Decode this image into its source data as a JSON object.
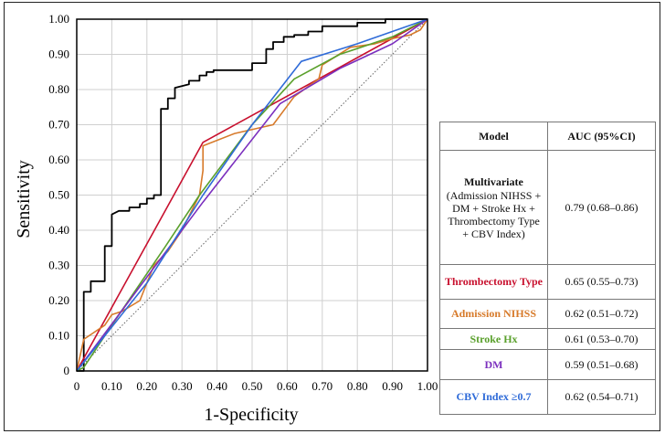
{
  "chart_data": {
    "type": "line",
    "xlabel": "1-Specificity",
    "ylabel": "Sensitivity",
    "xlim": [
      0,
      1
    ],
    "ylim": [
      0,
      1
    ],
    "grid": true,
    "xticks": [
      "0",
      "0.10",
      "0.20",
      "0.30",
      "0.40",
      "0.50",
      "0.60",
      "0.70",
      "0.80",
      "0.90",
      "1.00"
    ],
    "yticks": [
      "0",
      "0.10",
      "0.20",
      "0.30",
      "0.40",
      "0.50",
      "0.60",
      "0.70",
      "0.80",
      "0.90",
      "1.00"
    ],
    "reference_line": {
      "x": [
        0,
        1
      ],
      "y": [
        0,
        1
      ],
      "style": "dotted"
    },
    "series": [
      {
        "name": "Multivariate (Admission NIHSS + DM + Stroke Hx + Thrombectomy Type + CBV Index)",
        "color": "#000000",
        "x": [
          0,
          0.02,
          0.02,
          0.04,
          0.04,
          0.08,
          0.08,
          0.1,
          0.1,
          0.12,
          0.15,
          0.15,
          0.18,
          0.18,
          0.2,
          0.2,
          0.22,
          0.22,
          0.24,
          0.24,
          0.26,
          0.26,
          0.28,
          0.28,
          0.32,
          0.32,
          0.35,
          0.35,
          0.37,
          0.37,
          0.39,
          0.39,
          0.5,
          0.5,
          0.54,
          0.54,
          0.56,
          0.56,
          0.59,
          0.59,
          0.62,
          0.62,
          0.66,
          0.66,
          0.7,
          0.7,
          0.8,
          0.8,
          0.88,
          0.88,
          0.96,
          1.0
        ],
        "y": [
          0,
          0,
          0.225,
          0.225,
          0.255,
          0.255,
          0.355,
          0.355,
          0.445,
          0.455,
          0.455,
          0.465,
          0.465,
          0.475,
          0.475,
          0.49,
          0.49,
          0.5,
          0.5,
          0.745,
          0.745,
          0.775,
          0.775,
          0.805,
          0.815,
          0.825,
          0.825,
          0.84,
          0.84,
          0.85,
          0.85,
          0.855,
          0.855,
          0.875,
          0.875,
          0.915,
          0.915,
          0.935,
          0.935,
          0.95,
          0.95,
          0.955,
          0.955,
          0.965,
          0.965,
          0.98,
          0.98,
          0.99,
          0.99,
          1.0,
          1.0,
          1.0
        ]
      },
      {
        "name": "Thrombectomy Type",
        "color": "#c8102e",
        "x": [
          0,
          0.36,
          1.0
        ],
        "y": [
          0,
          0.65,
          1.0
        ]
      },
      {
        "name": "Admission NIHSS",
        "color": "#d77a2a",
        "x": [
          0,
          0.02,
          0.05,
          0.08,
          0.1,
          0.13,
          0.18,
          0.22,
          0.26,
          0.3,
          0.35,
          0.36,
          0.36,
          0.45,
          0.56,
          0.62,
          0.69,
          0.7,
          0.78,
          0.85,
          0.9,
          0.95,
          0.98,
          1.0
        ],
        "y": [
          0,
          0.09,
          0.11,
          0.13,
          0.16,
          0.17,
          0.2,
          0.3,
          0.34,
          0.4,
          0.5,
          0.57,
          0.64,
          0.675,
          0.7,
          0.78,
          0.83,
          0.87,
          0.92,
          0.93,
          0.945,
          0.955,
          0.97,
          1.0
        ]
      },
      {
        "name": "Stroke Hx",
        "color": "#5aa02c",
        "x": [
          0,
          0.02,
          0.1,
          0.25,
          0.35,
          0.5,
          0.62,
          0.75,
          0.9,
          1.0
        ],
        "y": [
          0,
          0.01,
          0.13,
          0.35,
          0.5,
          0.7,
          0.83,
          0.9,
          0.95,
          1.0
        ]
      },
      {
        "name": "DM",
        "color": "#7b2fbe",
        "x": [
          0,
          0.36,
          0.58,
          0.75,
          0.9,
          1.0
        ],
        "y": [
          0,
          0.48,
          0.76,
          0.86,
          0.93,
          1.0
        ]
      },
      {
        "name": "CBV Index ≥0.7",
        "color": "#2f6bd8",
        "x": [
          0,
          0.2,
          0.36,
          0.5,
          0.64,
          0.8,
          1.0
        ],
        "y": [
          0,
          0.25,
          0.5,
          0.7,
          0.88,
          0.93,
          1.0
        ]
      }
    ]
  },
  "table": {
    "header_model": "Model",
    "header_auc": "AUC (95%CI)",
    "rows": [
      {
        "name": "Multivariate",
        "sub": "(Admission NIHSS + DM + Stroke Hx + Thrombectomy Type + CBV Index)",
        "auc": "0.79 (0.68–0.86)",
        "color": "#000000"
      },
      {
        "name": "Thrombectomy Type",
        "auc": "0.65 (0.55–0.73)",
        "color": "#c8102e"
      },
      {
        "name": "Admission NIHSS",
        "auc": "0.62 (0.51–0.72)",
        "color": "#d77a2a"
      },
      {
        "name": "Stroke Hx",
        "auc": "0.61 (0.53–0.70)",
        "color": "#5aa02c"
      },
      {
        "name": "DM",
        "auc": "0.59 (0.51–0.68)",
        "color": "#7b2fbe"
      },
      {
        "name": "CBV Index ≥0.7",
        "auc": "0.62 (0.54–0.71)",
        "color": "#2f6bd8"
      }
    ]
  }
}
